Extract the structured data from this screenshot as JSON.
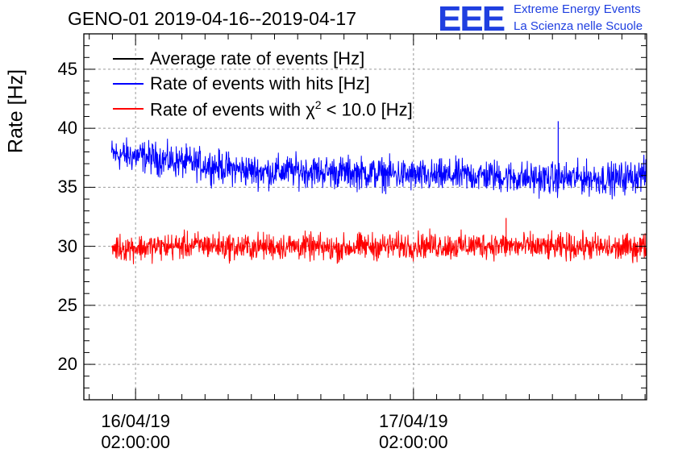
{
  "title": "GENO-01 2019-04-16--2019-04-17",
  "logo": {
    "text": "EEE",
    "line1": "Extreme Energy Events",
    "line2": "La Scienza nelle Scuole",
    "color": "#1f3fe0"
  },
  "chart_data": {
    "type": "line",
    "ylabel": "Rate [Hz]",
    "ylim": [
      17,
      48
    ],
    "yticks": [
      20,
      25,
      30,
      35,
      40,
      45
    ],
    "xticks": [
      {
        "date": "16/04/19",
        "time": "02:00:00",
        "t": "2019-04-16T02:00:00"
      },
      {
        "date": "17/04/19",
        "time": "02:00:00",
        "t": "2019-04-17T02:00:00"
      }
    ],
    "xlim": [
      "2019-04-15T21:32:00",
      "2019-04-17T22:08:00"
    ],
    "grid": true,
    "legend_position": "top-left",
    "series": [
      {
        "name": "Average rate of events [Hz]",
        "color": "#000000",
        "values": []
      },
      {
        "name": "Rate of events with hits [Hz]",
        "color": "#0000ff",
        "x_start": "2019-04-15T23:56:00",
        "x_end": "2019-04-17T22:08:00",
        "values": [
          37.8,
          37.6,
          37.2,
          36.9,
          36.5,
          36.3,
          36.4,
          36.3,
          36.2,
          36.1,
          35.9,
          36.0,
          36.0,
          35.8,
          35.7,
          35.8,
          35.7,
          36.1
        ],
        "spikes": [
          {
            "t": "2019-04-17T14:30:00",
            "value": 40.6
          }
        ]
      },
      {
        "name": "Rate of events with χ² < 10.0 [Hz]",
        "name_main": "Rate of events with χ",
        "name_sup": "2",
        "name_tail": " < 10.0 [Hz]",
        "color": "#ff0000",
        "x_start": "2019-04-15T23:56:00",
        "x_end": "2019-04-17T22:08:00",
        "values": [
          29.9,
          29.9,
          30.0,
          30.1,
          29.9,
          30.0,
          30.0,
          29.8,
          30.0,
          30.0,
          30.1,
          30.0,
          30.1,
          30.0,
          29.9,
          30.0,
          29.8,
          30.0
        ],
        "spikes": [
          {
            "t": "2019-04-17T10:00:00",
            "value": 32.4
          }
        ]
      }
    ]
  }
}
